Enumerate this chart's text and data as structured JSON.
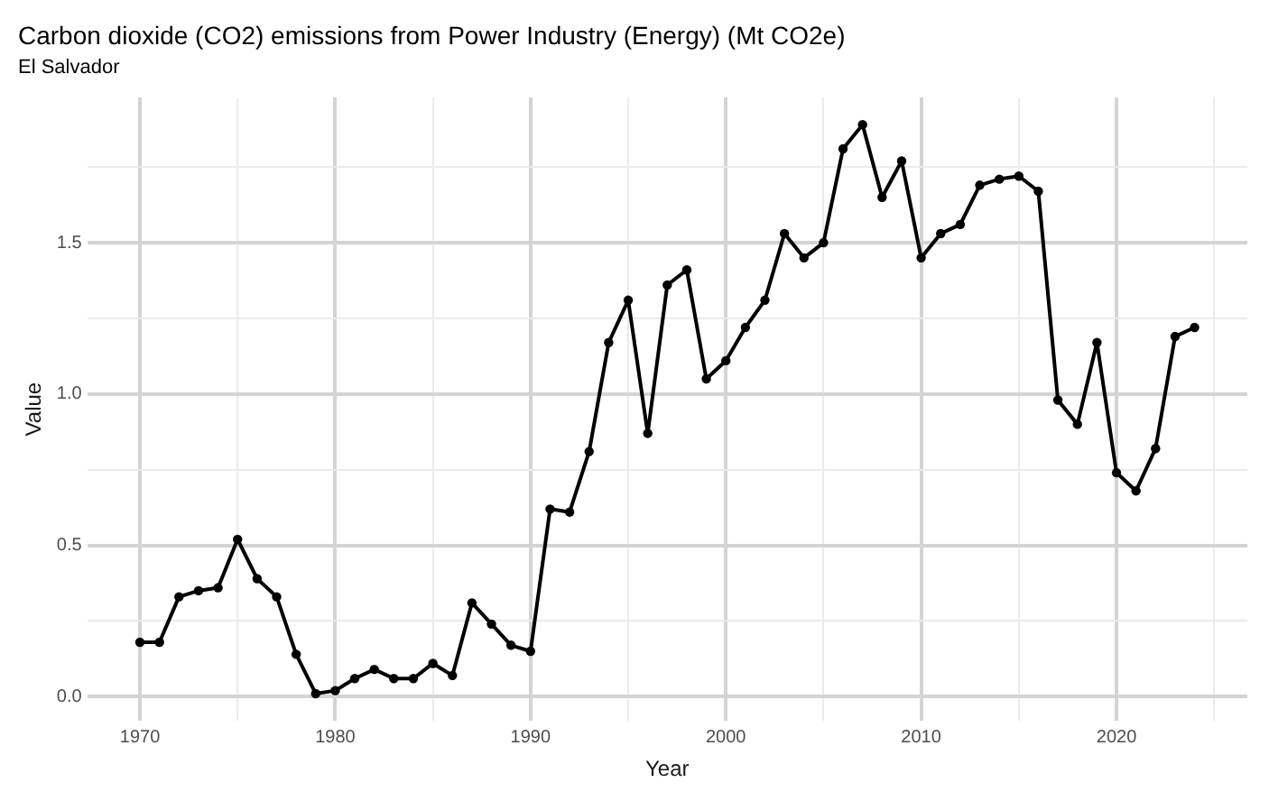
{
  "chart_data": {
    "type": "line",
    "title": "Carbon dioxide (CO2) emissions from Power Industry (Energy) (Mt CO2e)",
    "subtitle": "El Salvador",
    "xlabel": "Year",
    "ylabel": "Value",
    "x": [
      1970,
      1971,
      1972,
      1973,
      1974,
      1975,
      1976,
      1977,
      1978,
      1979,
      1980,
      1981,
      1982,
      1983,
      1984,
      1985,
      1986,
      1987,
      1988,
      1989,
      1990,
      1991,
      1992,
      1993,
      1994,
      1995,
      1996,
      1997,
      1998,
      1999,
      2000,
      2001,
      2002,
      2003,
      2004,
      2005,
      2006,
      2007,
      2008,
      2009,
      2010,
      2011,
      2012,
      2013,
      2014,
      2015,
      2016,
      2017,
      2018,
      2019,
      2020,
      2021,
      2022,
      2023,
      2024
    ],
    "series": [
      {
        "color": "#000000",
        "values": [
          0.18,
          0.18,
          0.33,
          0.35,
          0.36,
          0.52,
          0.39,
          0.33,
          0.14,
          0.01,
          0.02,
          0.06,
          0.09,
          0.06,
          0.06,
          0.11,
          0.07,
          0.31,
          0.24,
          0.17,
          0.15,
          0.62,
          0.61,
          0.81,
          1.17,
          1.31,
          0.87,
          1.36,
          1.41,
          1.05,
          1.11,
          1.22,
          1.31,
          1.53,
          1.45,
          1.5,
          1.81,
          1.89,
          1.65,
          1.77,
          1.45,
          1.53,
          1.56,
          1.69,
          1.71,
          1.72,
          1.67,
          0.98,
          0.9,
          1.17,
          0.74,
          0.68,
          0.82,
          1.19,
          1.22
        ]
      }
    ],
    "xlim": [
      1967.3,
      2026.7
    ],
    "ylim": [
      -0.08,
      1.98
    ],
    "xticks": [
      1970,
      {
        "value": 1975,
        "label": null
      },
      1980,
      {
        "value": 1985,
        "label": null
      },
      1990,
      {
        "value": 1995,
        "label": null
      },
      2000,
      {
        "value": 2005,
        "label": null
      },
      2010,
      {
        "value": 2015,
        "label": null
      },
      2020,
      {
        "value": 2025,
        "label": null
      }
    ],
    "yticks": [
      {
        "value": 0,
        "label": "0.0"
      },
      {
        "value": 0.25,
        "label": null
      },
      {
        "value": 0.5,
        "label": "0.5"
      },
      {
        "value": 0.75,
        "label": null
      },
      {
        "value": 1,
        "label": "1.0"
      },
      {
        "value": 1.25,
        "label": null
      },
      {
        "value": 1.5,
        "label": "1.5"
      },
      {
        "value": 1.75,
        "label": null
      }
    ],
    "grid": true,
    "legend": false,
    "marker": "circle",
    "line_style": "solid"
  }
}
